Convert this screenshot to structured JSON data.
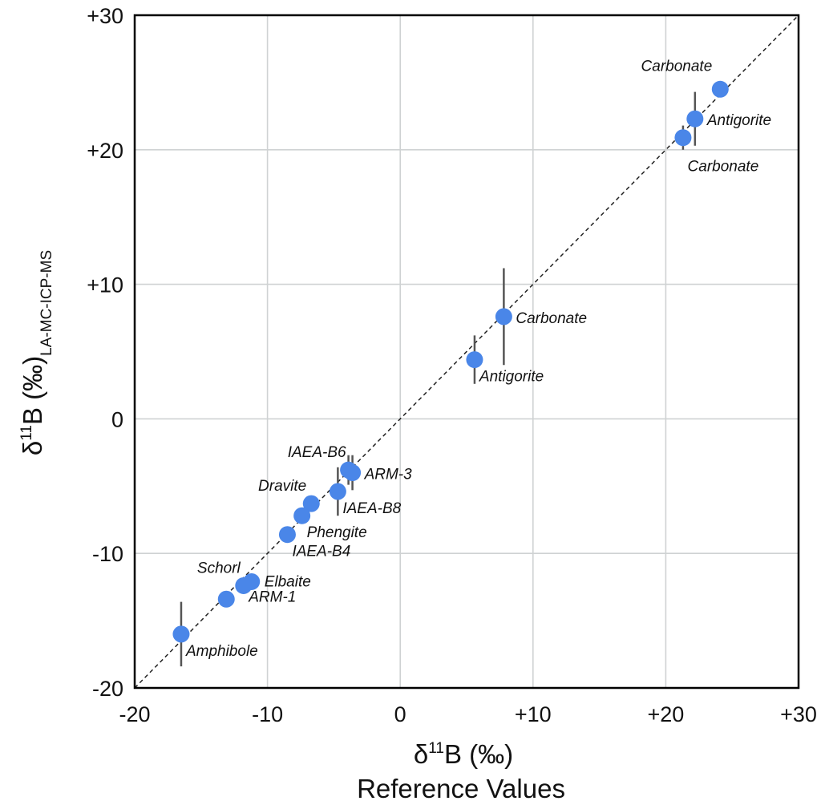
{
  "chart_data": {
    "type": "scatter",
    "xlabel": {
      "main": "δ",
      "sup": "11",
      "rest": "B (‰)",
      "line2": "Reference Values"
    },
    "ylabel": {
      "main": "δ",
      "sup": "11",
      "rest": "B (‰)",
      "sub": "LA-MC-ICP-MS"
    },
    "xlim": [
      -20,
      30
    ],
    "ylim": [
      -20,
      30
    ],
    "xticks": [
      -20,
      -10,
      0,
      10,
      20,
      30
    ],
    "yticks": [
      -20,
      -10,
      0,
      10,
      20,
      30
    ],
    "xtick_labels": [
      "-20",
      "-10",
      "0",
      "+10",
      "+20",
      "+30"
    ],
    "ytick_labels": [
      "-20",
      "-10",
      "0",
      "+10",
      "+20",
      "+30"
    ],
    "grid": true,
    "reference_line": "1:1 dashed",
    "marker_color": "#4a86e8",
    "errorbar_color": "#555555",
    "points": [
      {
        "label": "Carbonate",
        "x": 24.1,
        "y": 24.5,
        "err": 0,
        "label_pos": "above-left"
      },
      {
        "label": "Antigorite",
        "x": 22.2,
        "y": 22.3,
        "err": 2.0,
        "label_pos": "right"
      },
      {
        "label": "Carbonate",
        "x": 21.3,
        "y": 20.9,
        "err": 0.9,
        "label_pos": "below"
      },
      {
        "label": "Carbonate",
        "x": 7.8,
        "y": 7.6,
        "err": 3.6,
        "label_pos": "right"
      },
      {
        "label": "Antigorite",
        "x": 5.6,
        "y": 4.4,
        "err": 1.8,
        "label_pos": "below-right"
      },
      {
        "label": "IAEA-B6",
        "x": -3.9,
        "y": -3.8,
        "err": 1.1,
        "label_pos": "above-left"
      },
      {
        "label": "ARM-3",
        "x": -3.6,
        "y": -4.0,
        "err": 1.3,
        "label_pos": "right"
      },
      {
        "label": "IAEA-B8",
        "x": -4.7,
        "y": -5.4,
        "err": 1.8,
        "label_pos": "below-right"
      },
      {
        "label": "Dravite",
        "x": -6.7,
        "y": -6.3,
        "err": 0,
        "label_pos": "above-left"
      },
      {
        "label": "Phengite",
        "x": -7.4,
        "y": -7.2,
        "err": 0,
        "label_pos": "below-right"
      },
      {
        "label": "IAEA-B4",
        "x": -8.5,
        "y": -8.6,
        "err": 0,
        "label_pos": "below-right"
      },
      {
        "label": "Elbaite",
        "x": -11.2,
        "y": -12.1,
        "err": 0,
        "label_pos": "right"
      },
      {
        "label": "Schorl",
        "x": -11.8,
        "y": -12.4,
        "err": 0,
        "label_pos": "above-left"
      },
      {
        "label": "ARM-1",
        "x": -13.1,
        "y": -13.4,
        "err": 0,
        "label_pos": "below-right"
      },
      {
        "label": "Amphibole",
        "x": -16.5,
        "y": -16.0,
        "err": 2.4,
        "label_pos": "below-right"
      }
    ]
  }
}
